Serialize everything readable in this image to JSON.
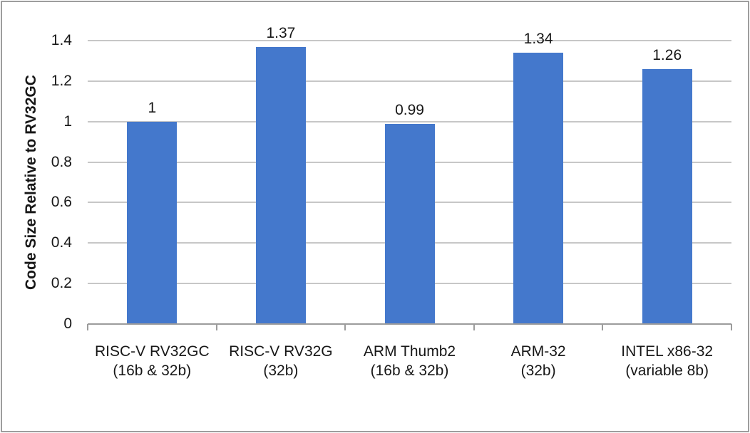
{
  "chart_data": {
    "type": "bar",
    "title": "",
    "xlabel": "",
    "ylabel": "Code Size Relative to RV32GC",
    "ylim": [
      0,
      1.4
    ],
    "grid": "horizontal-gridlines",
    "legend": "none",
    "yticks": [
      {
        "value": 0,
        "label": "0"
      },
      {
        "value": 0.2,
        "label": "0.2"
      },
      {
        "value": 0.4,
        "label": "0.4"
      },
      {
        "value": 0.6,
        "label": "0.6"
      },
      {
        "value": 0.8,
        "label": "0.8"
      },
      {
        "value": 1,
        "label": "1"
      },
      {
        "value": 1.2,
        "label": "1.2"
      },
      {
        "value": 1.4,
        "label": "1.4"
      }
    ],
    "categories": [
      {
        "label": "RISC-V RV32GC",
        "sublabel": "(16b & 32b)"
      },
      {
        "label": "RISC-V RV32G",
        "sublabel": "(32b)"
      },
      {
        "label": "ARM Thumb2",
        "sublabel": "(16b & 32b)"
      },
      {
        "label": "ARM-32",
        "sublabel": "(32b)"
      },
      {
        "label": "INTEL x86-32",
        "sublabel": "(variable 8b)"
      }
    ],
    "values": [
      1,
      1.37,
      0.99,
      1.34,
      1.26
    ],
    "value_labels": [
      "1",
      "1.37",
      "0.99",
      "1.34",
      "1.26"
    ],
    "colors": {
      "bar": "#4478cc",
      "gridline": "#c7c7c7",
      "axis": "#9c9c9c",
      "frame_border": "#9e9e9e",
      "text": "#171717",
      "background": "#ffffff"
    }
  }
}
